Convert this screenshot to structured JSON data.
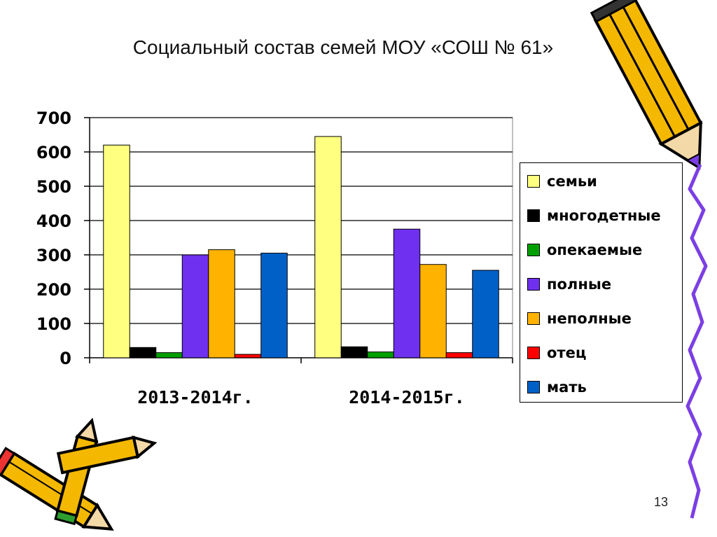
{
  "title": "Социальный состав семей МОУ «СОШ № 61»",
  "page_number": "13",
  "chart_data": {
    "type": "bar",
    "title": "",
    "xlabel": "",
    "ylabel": "",
    "categories": [
      "2013-2014г.",
      "2014-2015г."
    ],
    "ylim": [
      0,
      700
    ],
    "yticks": [
      "0",
      "100",
      "200",
      "300",
      "400",
      "500",
      "600",
      "700"
    ],
    "grid": true,
    "legend_position": "right",
    "series": [
      {
        "name": "семьи",
        "color": "#FFFF80",
        "values": [
          620,
          645
        ]
      },
      {
        "name": "многодетные",
        "color": "#000000",
        "values": [
          30,
          32
        ]
      },
      {
        "name": "опекаемые",
        "color": "#00A000",
        "values": [
          15,
          17
        ]
      },
      {
        "name": "полные",
        "color": "#7030F0",
        "values": [
          300,
          375
        ]
      },
      {
        "name": "неполные",
        "color": "#FFB300",
        "values": [
          315,
          272
        ]
      },
      {
        "name": "отец",
        "color": "#FF0000",
        "values": [
          10,
          15
        ]
      },
      {
        "name": "мать",
        "color": "#0060C8",
        "values": [
          305,
          255
        ]
      }
    ]
  }
}
